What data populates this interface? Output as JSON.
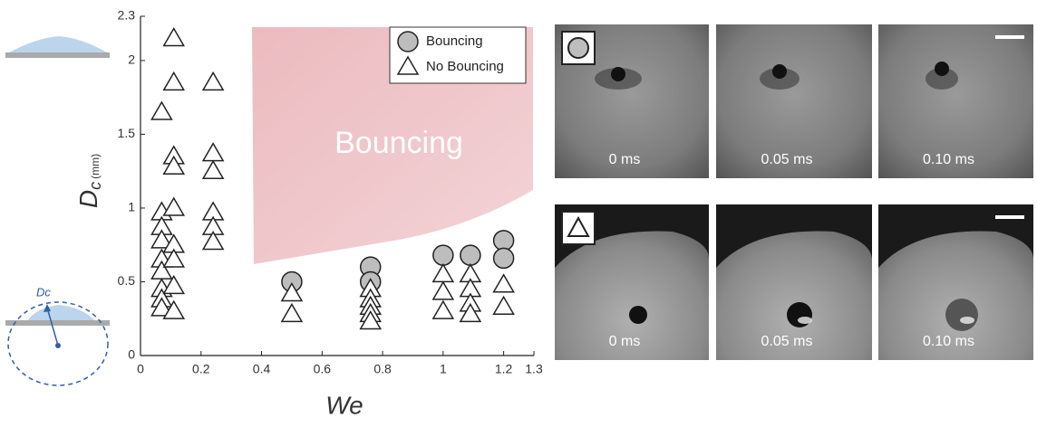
{
  "chart_data": {
    "type": "scatter",
    "xlabel": "We",
    "ylabel": {
      "symbol": "D",
      "subscript": "c",
      "unit": "(mm)"
    },
    "region_label": "Bouncing",
    "xlim": [
      0,
      1.3
    ],
    "xticks": [
      0,
      0.2,
      0.4,
      0.6,
      0.8,
      1,
      1.2,
      1.3
    ],
    "ylim": [
      0,
      2.3
    ],
    "yticks": [
      0,
      0.5,
      1,
      1.5,
      2,
      2.3
    ],
    "grid": false,
    "legend": "upper right",
    "series": [
      {
        "name": "Bouncing",
        "marker": "circle",
        "color": "#bdbdbd",
        "x": [
          0.5,
          0.76,
          0.76,
          1.0,
          1.09,
          1.2,
          1.2
        ],
        "values": [
          0.5,
          0.6,
          0.5,
          0.68,
          0.68,
          0.78,
          0.66
        ]
      },
      {
        "name": "No Bouncing",
        "marker": "triangle",
        "color": "#ffffff",
        "x": [
          0.07,
          0.07,
          0.07,
          0.07,
          0.07,
          0.07,
          0.07,
          0.07,
          0.07,
          0.11,
          0.11,
          0.11,
          0.11,
          0.11,
          0.11,
          0.11,
          0.11,
          0.11,
          0.24,
          0.24,
          0.24,
          0.24,
          0.24,
          0.24,
          0.5,
          0.5,
          0.76,
          0.76,
          0.76,
          0.76,
          0.76,
          1.0,
          1.0,
          1.0,
          1.09,
          1.09,
          1.09,
          1.09,
          1.2,
          1.2
        ],
        "values": [
          1.65,
          0.97,
          0.87,
          0.78,
          0.65,
          0.57,
          0.45,
          0.38,
          0.32,
          2.15,
          1.85,
          1.35,
          1.28,
          1.0,
          0.75,
          0.65,
          0.47,
          0.3,
          1.85,
          1.37,
          1.25,
          0.97,
          0.87,
          0.77,
          0.42,
          0.28,
          0.45,
          0.38,
          0.33,
          0.28,
          0.23,
          0.55,
          0.43,
          0.3,
          0.55,
          0.45,
          0.35,
          0.28,
          0.48,
          0.33
        ]
      }
    ]
  },
  "schematic_label": "Dc",
  "photos": {
    "rows": [
      {
        "times": [
          "0 ms",
          "0.05 ms",
          "0.10 ms"
        ]
      },
      {
        "times": [
          "0 ms",
          "0.05 ms",
          "0.10 ms"
        ]
      }
    ]
  }
}
